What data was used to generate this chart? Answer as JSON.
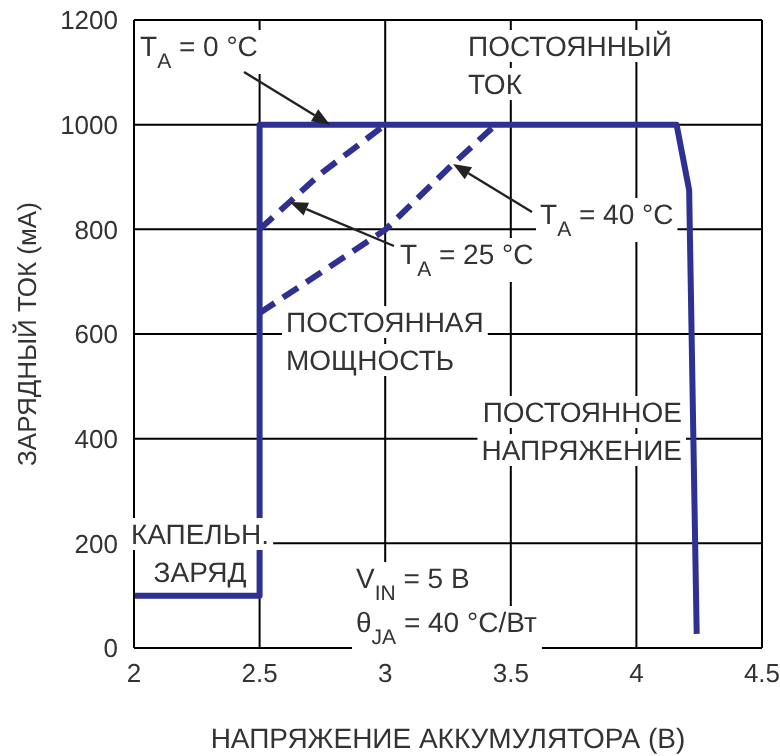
{
  "chart_data": {
    "type": "line",
    "xlabel": "НАПРЯЖЕНИЕ АККУМУЛЯТОРА (В)",
    "ylabel": "ЗАРЯДНЫЙ ТОК (мА)",
    "xlim": [
      2,
      4.5
    ],
    "xticks": [
      2,
      2.5,
      3,
      3.5,
      4,
      4.5
    ],
    "ylim": [
      0,
      1200
    ],
    "yticks": [
      0,
      200,
      400,
      600,
      800,
      1000,
      1200
    ],
    "grid": true,
    "marker": "none",
    "series": [
      {
        "color": "#2e3192",
        "line_style": "solid",
        "x": [
          2,
          2.5,
          2.5,
          4.16,
          4.21,
          4.24
        ],
        "values": [
          100,
          100,
          1000,
          1000,
          875,
          27
        ]
      },
      {
        "color": "#2e3192",
        "line_style": "dashed",
        "x": [
          2.5,
          2.74,
          3.0
        ],
        "values": [
          800,
          905,
          1000
        ]
      },
      {
        "color": "#2e3192",
        "line_style": "dashed",
        "x": [
          2.5,
          3.0,
          3.27,
          3.44
        ],
        "values": [
          640,
          799,
          925,
          1000
        ]
      }
    ],
    "annotations": [
      {
        "text": "T$_{A}$ = 0 °C",
        "x": 2.78,
        "y": 1000
      },
      {
        "text": "T$_{A}$ = 25 °C",
        "x": 2.62,
        "y": 852
      },
      "T$_{A}$ = 40 °C",
      "ПОСТОЯННЫЙ\nТОК",
      "ПОСТОЯННАЯ\nМОЩНОСТЬ",
      "ПОСТОЯННОЕ\nНАПРЯЖЕНИЕ",
      "КАПЕЛЬН.\nЗАРЯД",
      "V$_{IN}$ = 5 В",
      "θ$_{JA}$ = 40 °C/Вт"
    ]
  }
}
